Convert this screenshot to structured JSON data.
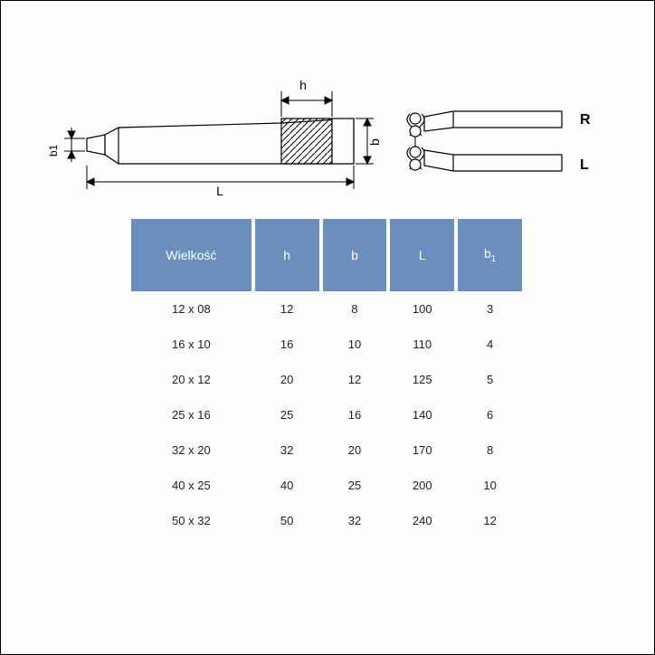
{
  "diagram": {
    "labels": {
      "L": "L",
      "h": "h",
      "b": "b",
      "b1": "b1",
      "R": "R",
      "Lside": "L"
    },
    "stroke": "#000000",
    "fill_bg": "#fdfdfb",
    "hatch_stroke": "#000000"
  },
  "table": {
    "header_bg": "#6a8fbf",
    "header_fg": "#ffffff",
    "columns": [
      "Wielkość",
      "h",
      "b",
      "L",
      "b₁"
    ],
    "rows": [
      [
        "12 x 08",
        "12",
        "8",
        "100",
        "3"
      ],
      [
        "16 x 10",
        "16",
        "10",
        "110",
        "4"
      ],
      [
        "20 x 12",
        "20",
        "12",
        "125",
        "5"
      ],
      [
        "25 x 16",
        "25",
        "16",
        "140",
        "6"
      ],
      [
        "32 x 20",
        "32",
        "20",
        "170",
        "8"
      ],
      [
        "40 x 25",
        "40",
        "25",
        "200",
        "10"
      ],
      [
        "50 x 32",
        "50",
        "32",
        "240",
        "12"
      ]
    ]
  }
}
